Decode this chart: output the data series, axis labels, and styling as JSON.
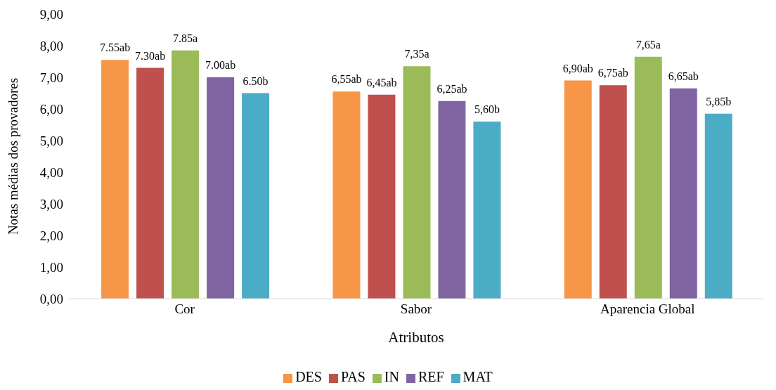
{
  "chart_data": {
    "type": "bar",
    "xlabel": "Atributos",
    "ylabel": "Notas médias dos provadores",
    "categories": [
      "Cor",
      "Sabor",
      "Aparencia Global"
    ],
    "series": [
      {
        "name": "DES",
        "color": "#f79646",
        "values": [
          7.55,
          6.55,
          6.9
        ],
        "value_labels": [
          "7.55ab",
          "6,55ab",
          "6,90ab"
        ]
      },
      {
        "name": "PAS",
        "color": "#c0504d",
        "values": [
          7.3,
          6.45,
          6.75
        ],
        "value_labels": [
          "7.30ab",
          "6,45ab",
          "6,75ab"
        ]
      },
      {
        "name": "IN",
        "color": "#9bbb59",
        "values": [
          7.85,
          7.35,
          7.65
        ],
        "value_labels": [
          "7.85a",
          "7,35a",
          "7,65a"
        ]
      },
      {
        "name": "REF",
        "color": "#8064a2",
        "values": [
          7.0,
          6.25,
          6.65
        ],
        "value_labels": [
          "7.00ab",
          "6,25ab",
          "6,65ab"
        ]
      },
      {
        "name": "MAT",
        "color": "#4bacc6",
        "values": [
          6.5,
          5.6,
          5.85
        ],
        "value_labels": [
          "6.50b",
          "5,60b",
          "5,85b"
        ]
      }
    ],
    "ylim": [
      0,
      9
    ],
    "yticks": [
      {
        "value": 0,
        "label": "0,00"
      },
      {
        "value": 1,
        "label": "1,00"
      },
      {
        "value": 2,
        "label": "2,00"
      },
      {
        "value": 3,
        "label": "3,00"
      },
      {
        "value": 4,
        "label": "4,00"
      },
      {
        "value": 5,
        "label": "5,00"
      },
      {
        "value": 6,
        "label": "6,00"
      },
      {
        "value": 7,
        "label": "7,00"
      },
      {
        "value": 8,
        "label": "8,00"
      },
      {
        "value": 9,
        "label": "9,00"
      }
    ],
    "grid": false,
    "legend": "bottom"
  }
}
